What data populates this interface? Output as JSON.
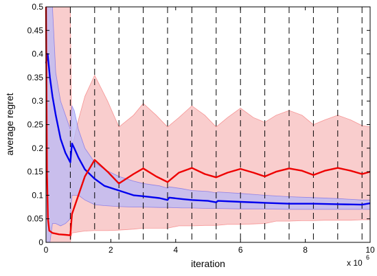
{
  "chart_data": {
    "type": "line",
    "xlabel": "iteration",
    "ylabel": "average regret",
    "x_multiplier_label": "x 10",
    "x_multiplier_exponent": "6",
    "xlim": [
      0,
      10000000
    ],
    "ylim": [
      0,
      0.5
    ],
    "x_ticks": [
      0,
      2,
      4,
      6,
      8,
      10
    ],
    "y_ticks": [
      0,
      0.05,
      0.1,
      0.15,
      0.2,
      0.25,
      0.3,
      0.35,
      0.4,
      0.45,
      0.5
    ],
    "grid": "vertical dashed lines at phase boundaries",
    "phase_boundaries": [
      750000,
      1500000,
      2250000,
      3000000,
      3750000,
      4500000,
      5250000,
      6000000,
      6750000,
      7500000,
      8250000,
      9000000,
      9750000
    ],
    "series": [
      {
        "color": "#0000ee",
        "band_color": "#b8b8f5",
        "x": [
          0,
          50000,
          120000,
          200000,
          300000,
          450000,
          600000,
          750000,
          800000,
          870000,
          1000000,
          1200000,
          1500000,
          1800000,
          2250000,
          2700000,
          3000000,
          3500000,
          3750000,
          3800000,
          4200000,
          4500000,
          5000000,
          5250000,
          5300000,
          6000000,
          6750000,
          7500000,
          8250000,
          9000000,
          9750000,
          10000000
        ],
        "y": [
          0.38,
          0.4,
          0.35,
          0.31,
          0.27,
          0.22,
          0.19,
          0.17,
          0.21,
          0.2,
          0.18,
          0.155,
          0.135,
          0.12,
          0.11,
          0.1,
          0.098,
          0.094,
          0.09,
          0.095,
          0.092,
          0.09,
          0.088,
          0.085,
          0.088,
          0.086,
          0.084,
          0.082,
          0.082,
          0.081,
          0.08,
          0.083
        ],
        "band_lower": [
          0.0,
          0.0,
          0.0,
          0.04,
          0.04,
          0.035,
          0.04,
          0.05,
          0.1,
          0.1,
          0.1,
          0.09,
          0.08,
          0.078,
          0.076,
          0.075,
          0.075,
          0.074,
          0.074,
          0.074,
          0.073,
          0.073,
          0.072,
          0.072,
          0.072,
          0.071,
          0.071,
          0.07,
          0.07,
          0.07,
          0.07,
          0.07
        ],
        "band_upper": [
          0.5,
          0.5,
          0.5,
          0.5,
          0.36,
          0.3,
          0.27,
          0.24,
          0.29,
          0.28,
          0.24,
          0.2,
          0.17,
          0.155,
          0.14,
          0.13,
          0.125,
          0.12,
          0.115,
          0.118,
          0.114,
          0.11,
          0.108,
          0.105,
          0.107,
          0.104,
          0.1,
          0.097,
          0.095,
          0.093,
          0.09,
          0.09
        ]
      },
      {
        "color": "#ee0000",
        "band_color": "#f8c4c4",
        "x": [
          0,
          30000,
          60000,
          100000,
          200000,
          400000,
          600000,
          750000,
          800000,
          1000000,
          1200000,
          1500000,
          1900000,
          2250000,
          2700000,
          3000000,
          3400000,
          3750000,
          4100000,
          4500000,
          4900000,
          5250000,
          5600000,
          6000000,
          6400000,
          6750000,
          7100000,
          7500000,
          7900000,
          8250000,
          8600000,
          9000000,
          9400000,
          9750000,
          10000000
        ],
        "y": [
          0.5,
          0.15,
          0.05,
          0.025,
          0.02,
          0.017,
          0.016,
          0.015,
          0.06,
          0.1,
          0.14,
          0.175,
          0.15,
          0.125,
          0.145,
          0.157,
          0.14,
          0.128,
          0.148,
          0.158,
          0.145,
          0.138,
          0.148,
          0.156,
          0.148,
          0.14,
          0.15,
          0.157,
          0.152,
          0.143,
          0.152,
          0.158,
          0.152,
          0.145,
          0.15
        ],
        "band_lower": [
          0.0,
          0.0,
          0.0,
          0.0,
          0.0,
          0.0,
          0.0,
          0.0,
          0.02,
          0.022,
          0.024,
          0.025,
          0.025,
          0.026,
          0.028,
          0.03,
          0.03,
          0.03,
          0.035,
          0.035,
          0.036,
          0.036,
          0.038,
          0.038,
          0.039,
          0.04,
          0.045,
          0.045,
          0.046,
          0.046,
          0.047,
          0.047,
          0.047,
          0.048,
          0.048
        ],
        "band_upper": [
          0.5,
          0.5,
          0.5,
          0.5,
          0.5,
          0.5,
          0.5,
          0.5,
          0.2,
          0.26,
          0.31,
          0.355,
          0.3,
          0.245,
          0.27,
          0.295,
          0.27,
          0.245,
          0.265,
          0.29,
          0.27,
          0.245,
          0.265,
          0.285,
          0.265,
          0.255,
          0.27,
          0.28,
          0.27,
          0.25,
          0.26,
          0.27,
          0.26,
          0.248,
          0.245
        ]
      }
    ]
  }
}
